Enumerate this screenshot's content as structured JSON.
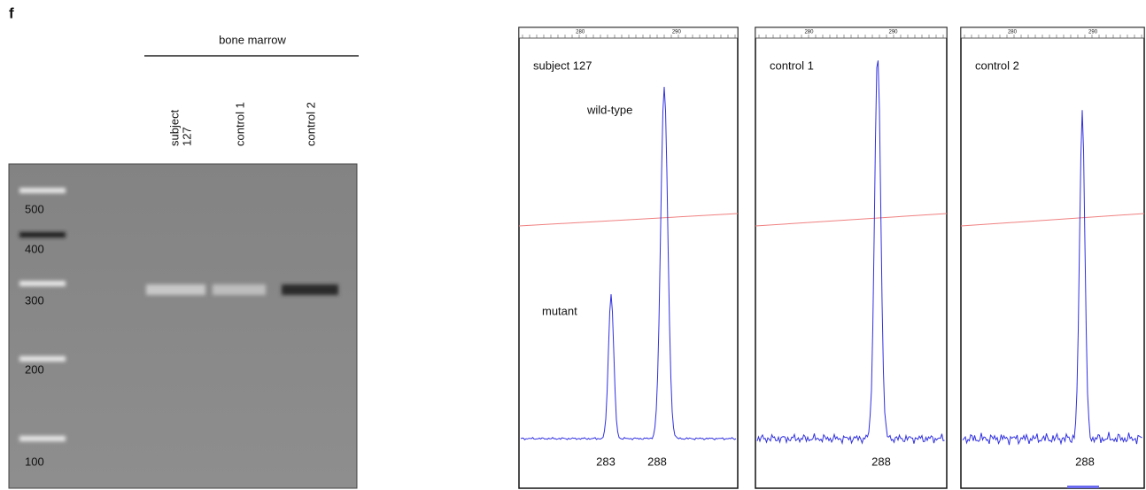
{
  "figure_label": "f",
  "gel": {
    "header": "bone marrow",
    "lanes": [
      [
        "subject",
        "127"
      ],
      [
        "control 1"
      ],
      [
        "control 2"
      ]
    ],
    "ladder": [
      "500",
      "400",
      "300",
      "200",
      "100"
    ]
  },
  "traces": [
    {
      "title": "subject 127",
      "axis_ticks": [
        "280",
        "290"
      ],
      "annotations": [
        "wild-type",
        "mutant"
      ],
      "peak_labels": [
        "283",
        "288"
      ]
    },
    {
      "title": "control 1",
      "axis_ticks": [
        "280",
        "290"
      ],
      "peak_labels": [
        "288"
      ]
    },
    {
      "title": "control 2",
      "axis_ticks": [
        "280",
        "290"
      ],
      "peak_labels": [
        "288"
      ]
    }
  ]
}
